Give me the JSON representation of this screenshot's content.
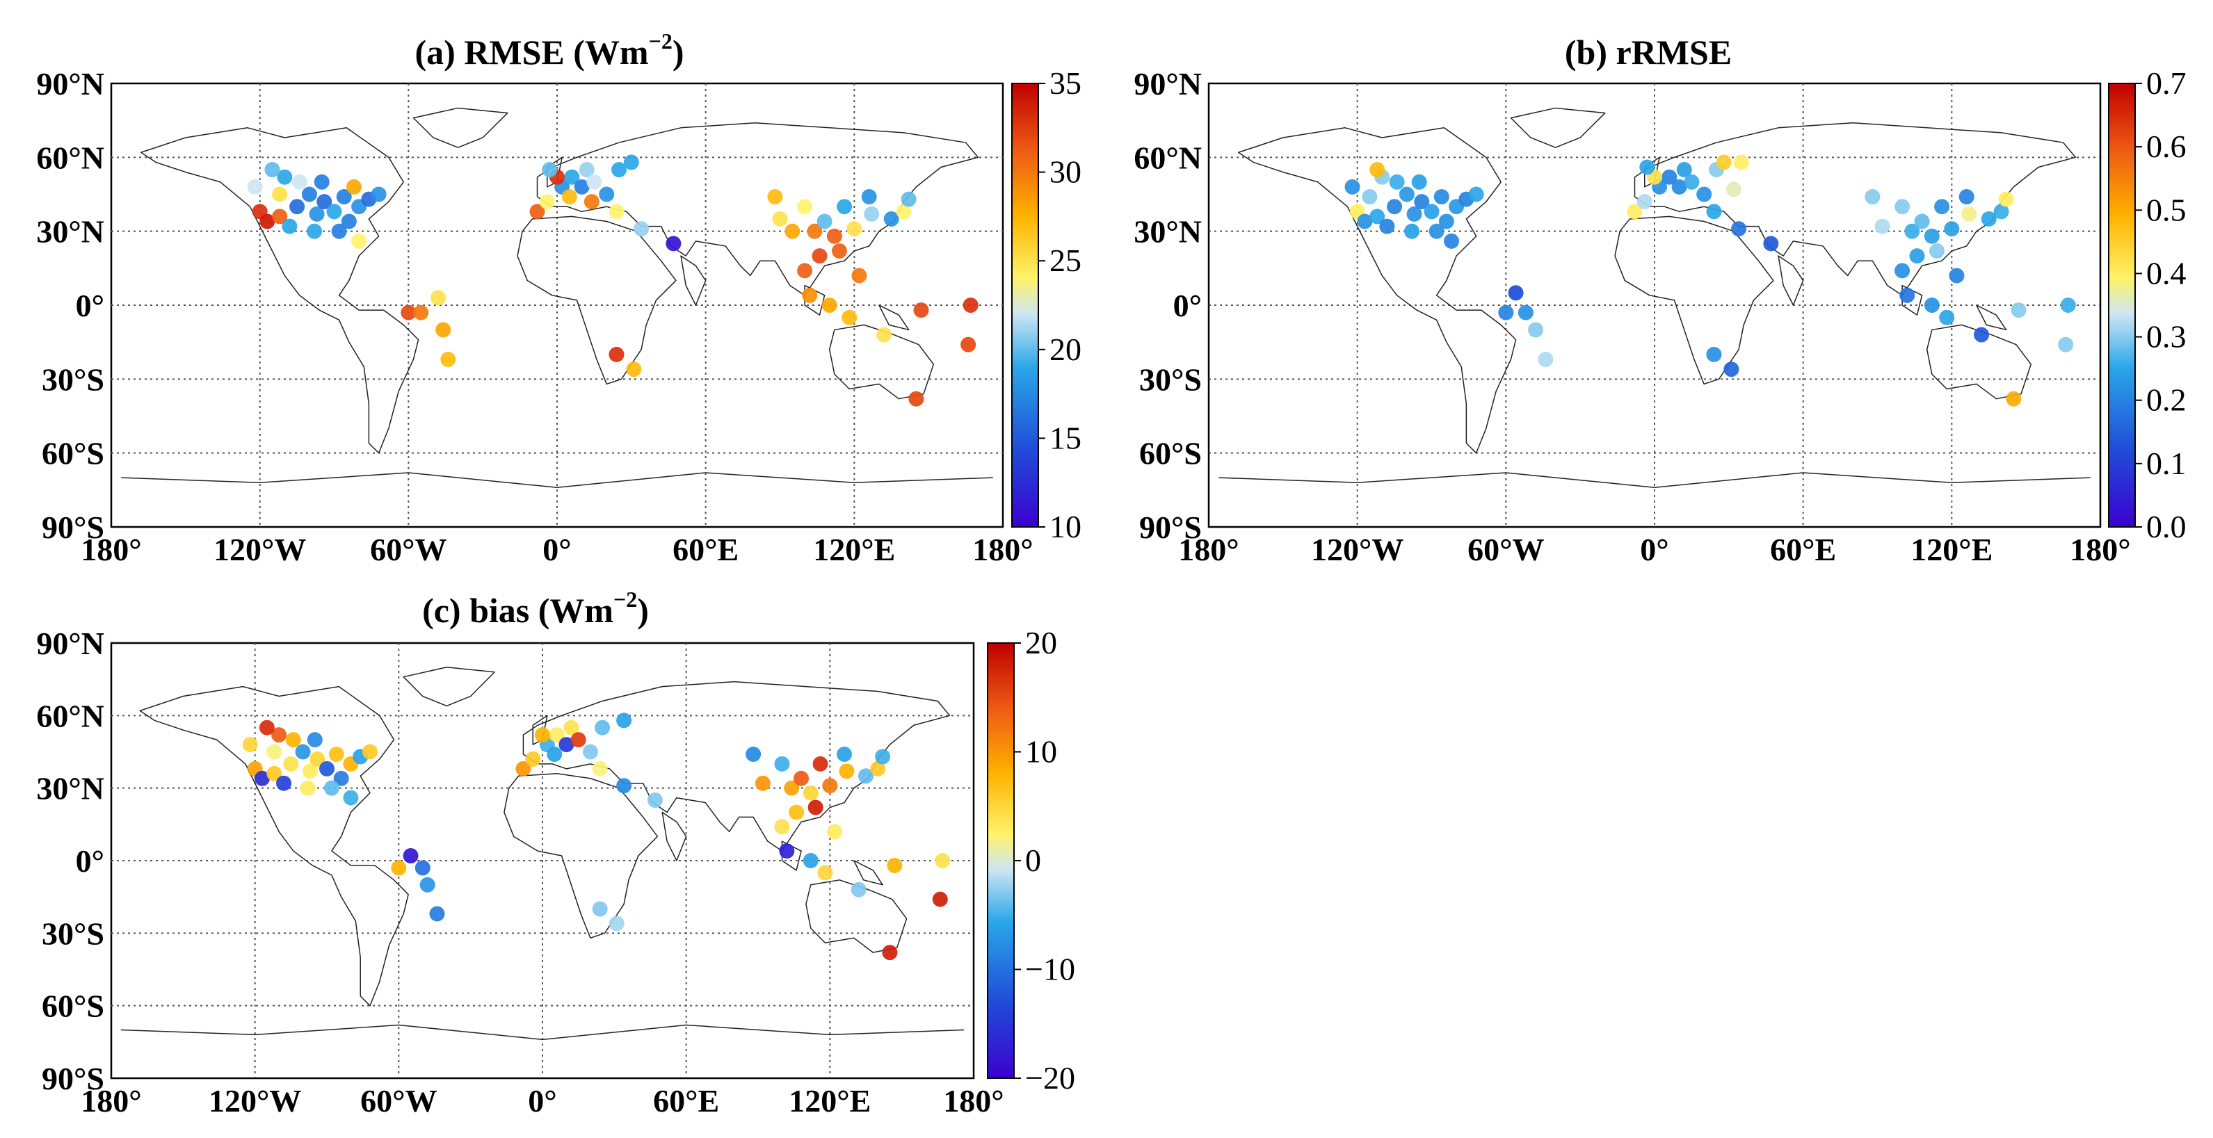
{
  "chart_data": [
    {
      "type": "scatter",
      "title": "(a) RMSE  (Wm^-2)",
      "title_main": "(a) RMSE  (Wm",
      "title_sup": "−2",
      "title_close": ")",
      "colorbar": {
        "min": 10,
        "max": 35,
        "ticks": [
          "10",
          "15",
          "20",
          "25",
          "30",
          "35"
        ]
      },
      "points": [
        {
          "lon": -122,
          "lat": 48,
          "v": 22
        },
        {
          "lon": -120,
          "lat": 38,
          "v": 33
        },
        {
          "lon": -117,
          "lat": 34,
          "v": 34
        },
        {
          "lon": -112,
          "lat": 36,
          "v": 31
        },
        {
          "lon": -108,
          "lat": 32,
          "v": 19
        },
        {
          "lon": -105,
          "lat": 40,
          "v": 16
        },
        {
          "lon": -100,
          "lat": 45,
          "v": 17
        },
        {
          "lon": -97,
          "lat": 37,
          "v": 18
        },
        {
          "lon": -94,
          "lat": 42,
          "v": 16
        },
        {
          "lon": -90,
          "lat": 38,
          "v": 19
        },
        {
          "lon": -86,
          "lat": 44,
          "v": 17
        },
        {
          "lon": -84,
          "lat": 34,
          "v": 17
        },
        {
          "lon": -80,
          "lat": 40,
          "v": 18
        },
        {
          "lon": -76,
          "lat": 43,
          "v": 16
        },
        {
          "lon": -72,
          "lat": 45,
          "v": 18
        },
        {
          "lon": -110,
          "lat": 52,
          "v": 19
        },
        {
          "lon": -104,
          "lat": 50,
          "v": 22
        },
        {
          "lon": -95,
          "lat": 50,
          "v": 17
        },
        {
          "lon": -82,
          "lat": 48,
          "v": 28
        },
        {
          "lon": -112,
          "lat": 45,
          "v": 25
        },
        {
          "lon": -115,
          "lat": 55,
          "v": 20
        },
        {
          "lon": -88,
          "lat": 30,
          "v": 17
        },
        {
          "lon": -98,
          "lat": 30,
          "v": 19
        },
        {
          "lon": -80,
          "lat": 26,
          "v": 24
        },
        {
          "lon": -60,
          "lat": -3,
          "v": 32
        },
        {
          "lon": -55,
          "lat": -3,
          "v": 30
        },
        {
          "lon": -48,
          "lat": 3,
          "v": 25
        },
        {
          "lon": -46,
          "lat": -10,
          "v": 28
        },
        {
          "lon": -44,
          "lat": -22,
          "v": 27
        },
        {
          "lon": -8,
          "lat": 38,
          "v": 31
        },
        {
          "lon": -4,
          "lat": 42,
          "v": 24
        },
        {
          "lon": 2,
          "lat": 48,
          "v": 18
        },
        {
          "lon": 6,
          "lat": 52,
          "v": 19
        },
        {
          "lon": 10,
          "lat": 48,
          "v": 17
        },
        {
          "lon": 12,
          "lat": 55,
          "v": 21
        },
        {
          "lon": 15,
          "lat": 50,
          "v": 22
        },
        {
          "lon": 20,
          "lat": 45,
          "v": 18
        },
        {
          "lon": 25,
          "lat": 55,
          "v": 19
        },
        {
          "lon": 0,
          "lat": 52,
          "v": 33
        },
        {
          "lon": 5,
          "lat": 44,
          "v": 27
        },
        {
          "lon": 14,
          "lat": 42,
          "v": 30
        },
        {
          "lon": 24,
          "lat": 38,
          "v": 24
        },
        {
          "lon": 30,
          "lat": 58,
          "v": 19
        },
        {
          "lon": -3,
          "lat": 55,
          "v": 20
        },
        {
          "lon": 34,
          "lat": 31,
          "v": 21
        },
        {
          "lon": 47,
          "lat": 25,
          "v": 11
        },
        {
          "lon": 24,
          "lat": -20,
          "v": 33
        },
        {
          "lon": 31,
          "lat": -26,
          "v": 27
        },
        {
          "lon": 88,
          "lat": 44,
          "v": 27
        },
        {
          "lon": 90,
          "lat": 35,
          "v": 25
        },
        {
          "lon": 95,
          "lat": 30,
          "v": 28
        },
        {
          "lon": 100,
          "lat": 40,
          "v": 24
        },
        {
          "lon": 104,
          "lat": 30,
          "v": 30
        },
        {
          "lon": 108,
          "lat": 34,
          "v": 20
        },
        {
          "lon": 112,
          "lat": 28,
          "v": 31
        },
        {
          "lon": 116,
          "lat": 40,
          "v": 19
        },
        {
          "lon": 120,
          "lat": 31,
          "v": 25
        },
        {
          "lon": 126,
          "lat": 44,
          "v": 18
        },
        {
          "lon": 127,
          "lat": 37,
          "v": 21
        },
        {
          "lon": 135,
          "lat": 35,
          "v": 18
        },
        {
          "lon": 140,
          "lat": 38,
          "v": 24
        },
        {
          "lon": 142,
          "lat": 43,
          "v": 20
        },
        {
          "lon": 114,
          "lat": 22,
          "v": 31
        },
        {
          "lon": 106,
          "lat": 20,
          "v": 32
        },
        {
          "lon": 100,
          "lat": 14,
          "v": 31
        },
        {
          "lon": 102,
          "lat": 4,
          "v": 29
        },
        {
          "lon": 110,
          "lat": 0,
          "v": 28
        },
        {
          "lon": 118,
          "lat": -5,
          "v": 27
        },
        {
          "lon": 122,
          "lat": 12,
          "v": 30
        },
        {
          "lon": 132,
          "lat": -12,
          "v": 25
        },
        {
          "lon": 147,
          "lat": -2,
          "v": 32
        },
        {
          "lon": 167,
          "lat": 0,
          "v": 33
        },
        {
          "lon": 166,
          "lat": -16,
          "v": 32
        },
        {
          "lon": 145,
          "lat": -38,
          "v": 32
        }
      ]
    },
    {
      "type": "scatter",
      "title": "(b) rRMSE",
      "title_main": "(b) rRMSE",
      "title_sup": "",
      "title_close": "",
      "colorbar": {
        "min": 0.0,
        "max": 0.7,
        "ticks": [
          "0.0",
          "0.1",
          "0.2",
          "0.3",
          "0.4",
          "0.5",
          "0.6",
          "0.7"
        ]
      },
      "points": [
        {
          "lon": -122,
          "lat": 48,
          "v": 0.22
        },
        {
          "lon": -120,
          "lat": 38,
          "v": 0.4
        },
        {
          "lon": -117,
          "lat": 34,
          "v": 0.22
        },
        {
          "lon": -112,
          "lat": 36,
          "v": 0.25
        },
        {
          "lon": -108,
          "lat": 32,
          "v": 0.2
        },
        {
          "lon": -105,
          "lat": 40,
          "v": 0.2
        },
        {
          "lon": -100,
          "lat": 45,
          "v": 0.23
        },
        {
          "lon": -97,
          "lat": 37,
          "v": 0.22
        },
        {
          "lon": -94,
          "lat": 42,
          "v": 0.2
        },
        {
          "lon": -90,
          "lat": 38,
          "v": 0.24
        },
        {
          "lon": -86,
          "lat": 44,
          "v": 0.21
        },
        {
          "lon": -84,
          "lat": 34,
          "v": 0.22
        },
        {
          "lon": -80,
          "lat": 40,
          "v": 0.23
        },
        {
          "lon": -76,
          "lat": 43,
          "v": 0.2
        },
        {
          "lon": -72,
          "lat": 45,
          "v": 0.25
        },
        {
          "lon": -110,
          "lat": 52,
          "v": 0.3
        },
        {
          "lon": -104,
          "lat": 50,
          "v": 0.26
        },
        {
          "lon": -95,
          "lat": 50,
          "v": 0.24
        },
        {
          "lon": -112,
          "lat": 55,
          "v": 0.48
        },
        {
          "lon": -115,
          "lat": 44,
          "v": 0.3
        },
        {
          "lon": -98,
          "lat": 30,
          "v": 0.24
        },
        {
          "lon": -88,
          "lat": 30,
          "v": 0.22
        },
        {
          "lon": -82,
          "lat": 26,
          "v": 0.2
        },
        {
          "lon": -56,
          "lat": 5,
          "v": 0.12
        },
        {
          "lon": -60,
          "lat": -3,
          "v": 0.2
        },
        {
          "lon": -52,
          "lat": -3,
          "v": 0.22
        },
        {
          "lon": -48,
          "lat": -10,
          "v": 0.3
        },
        {
          "lon": -44,
          "lat": -22,
          "v": 0.32
        },
        {
          "lon": -8,
          "lat": 38,
          "v": 0.4
        },
        {
          "lon": -4,
          "lat": 42,
          "v": 0.32
        },
        {
          "lon": 2,
          "lat": 48,
          "v": 0.22
        },
        {
          "lon": 6,
          "lat": 52,
          "v": 0.2
        },
        {
          "lon": 10,
          "lat": 48,
          "v": 0.21
        },
        {
          "lon": 12,
          "lat": 55,
          "v": 0.24
        },
        {
          "lon": 0,
          "lat": 52,
          "v": 0.42
        },
        {
          "lon": 15,
          "lat": 50,
          "v": 0.26
        },
        {
          "lon": 20,
          "lat": 45,
          "v": 0.22
        },
        {
          "lon": 24,
          "lat": 38,
          "v": 0.25
        },
        {
          "lon": 25,
          "lat": 55,
          "v": 0.3
        },
        {
          "lon": 28,
          "lat": 58,
          "v": 0.45
        },
        {
          "lon": 35,
          "lat": 58,
          "v": 0.4
        },
        {
          "lon": 32,
          "lat": 47,
          "v": 0.36
        },
        {
          "lon": -3,
          "lat": 56,
          "v": 0.25
        },
        {
          "lon": 34,
          "lat": 31,
          "v": 0.18
        },
        {
          "lon": 47,
          "lat": 25,
          "v": 0.14
        },
        {
          "lon": 24,
          "lat": -20,
          "v": 0.22
        },
        {
          "lon": 31,
          "lat": -26,
          "v": 0.16
        },
        {
          "lon": 88,
          "lat": 44,
          "v": 0.3
        },
        {
          "lon": 92,
          "lat": 32,
          "v": 0.32
        },
        {
          "lon": 100,
          "lat": 40,
          "v": 0.3
        },
        {
          "lon": 104,
          "lat": 30,
          "v": 0.26
        },
        {
          "lon": 108,
          "lat": 34,
          "v": 0.28
        },
        {
          "lon": 112,
          "lat": 28,
          "v": 0.24
        },
        {
          "lon": 116,
          "lat": 40,
          "v": 0.22
        },
        {
          "lon": 120,
          "lat": 31,
          "v": 0.24
        },
        {
          "lon": 126,
          "lat": 44,
          "v": 0.2
        },
        {
          "lon": 127,
          "lat": 37,
          "v": 0.38
        },
        {
          "lon": 135,
          "lat": 35,
          "v": 0.25
        },
        {
          "lon": 140,
          "lat": 38,
          "v": 0.26
        },
        {
          "lon": 142,
          "lat": 43,
          "v": 0.4
        },
        {
          "lon": 114,
          "lat": 22,
          "v": 0.3
        },
        {
          "lon": 106,
          "lat": 20,
          "v": 0.24
        },
        {
          "lon": 100,
          "lat": 14,
          "v": 0.22
        },
        {
          "lon": 102,
          "lat": 4,
          "v": 0.18
        },
        {
          "lon": 112,
          "lat": 0,
          "v": 0.22
        },
        {
          "lon": 118,
          "lat": -5,
          "v": 0.25
        },
        {
          "lon": 122,
          "lat": 12,
          "v": 0.2
        },
        {
          "lon": 132,
          "lat": -12,
          "v": 0.14
        },
        {
          "lon": 147,
          "lat": -2,
          "v": 0.3
        },
        {
          "lon": 167,
          "lat": 0,
          "v": 0.26
        },
        {
          "lon": 166,
          "lat": -16,
          "v": 0.3
        },
        {
          "lon": 145,
          "lat": -38,
          "v": 0.5
        }
      ]
    },
    {
      "type": "scatter",
      "title": "(c) bias (Wm^-2)",
      "title_main": "(c) bias (Wm",
      "title_sup": "−2",
      "title_close": ")",
      "colorbar": {
        "min": -20,
        "max": 20,
        "ticks": [
          "−20",
          "−10",
          "0",
          "10",
          "20"
        ]
      },
      "points": [
        {
          "lon": -122,
          "lat": 48,
          "v": 5
        },
        {
          "lon": -120,
          "lat": 38,
          "v": 9
        },
        {
          "lon": -117,
          "lat": 34,
          "v": -16
        },
        {
          "lon": -112,
          "lat": 36,
          "v": 6
        },
        {
          "lon": -108,
          "lat": 32,
          "v": -14
        },
        {
          "lon": -105,
          "lat": 40,
          "v": 4
        },
        {
          "lon": -100,
          "lat": 45,
          "v": -7
        },
        {
          "lon": -97,
          "lat": 37,
          "v": 3
        },
        {
          "lon": -94,
          "lat": 42,
          "v": 5
        },
        {
          "lon": -90,
          "lat": 38,
          "v": -12
        },
        {
          "lon": -86,
          "lat": 44,
          "v": 7
        },
        {
          "lon": -84,
          "lat": 34,
          "v": -9
        },
        {
          "lon": -80,
          "lat": 40,
          "v": 8
        },
        {
          "lon": -76,
          "lat": 43,
          "v": -6
        },
        {
          "lon": -72,
          "lat": 45,
          "v": 6
        },
        {
          "lon": -110,
          "lat": 52,
          "v": 14
        },
        {
          "lon": -104,
          "lat": 50,
          "v": 8
        },
        {
          "lon": -95,
          "lat": 50,
          "v": -8
        },
        {
          "lon": -115,
          "lat": 55,
          "v": 17
        },
        {
          "lon": -112,
          "lat": 45,
          "v": 2
        },
        {
          "lon": -98,
          "lat": 30,
          "v": 3
        },
        {
          "lon": -88,
          "lat": 30,
          "v": -4
        },
        {
          "lon": -80,
          "lat": 26,
          "v": -5
        },
        {
          "lon": -55,
          "lat": 2,
          "v": -18
        },
        {
          "lon": -60,
          "lat": -3,
          "v": 8
        },
        {
          "lon": -50,
          "lat": -3,
          "v": -10
        },
        {
          "lon": -48,
          "lat": -10,
          "v": -7
        },
        {
          "lon": -44,
          "lat": -22,
          "v": -9
        },
        {
          "lon": -8,
          "lat": 38,
          "v": 10
        },
        {
          "lon": -4,
          "lat": 42,
          "v": 6
        },
        {
          "lon": 2,
          "lat": 48,
          "v": -5
        },
        {
          "lon": 6,
          "lat": 52,
          "v": 3
        },
        {
          "lon": 10,
          "lat": 48,
          "v": -15
        },
        {
          "lon": 12,
          "lat": 55,
          "v": 4
        },
        {
          "lon": 15,
          "lat": 50,
          "v": 16
        },
        {
          "lon": 20,
          "lat": 45,
          "v": -3
        },
        {
          "lon": 24,
          "lat": 38,
          "v": 2
        },
        {
          "lon": 0,
          "lat": 52,
          "v": 8
        },
        {
          "lon": 5,
          "lat": 44,
          "v": -6
        },
        {
          "lon": 25,
          "lat": 55,
          "v": -4
        },
        {
          "lon": 34,
          "lat": 58,
          "v": -6
        },
        {
          "lon": 34,
          "lat": 31,
          "v": -8
        },
        {
          "lon": 47,
          "lat": 25,
          "v": -3
        },
        {
          "lon": 24,
          "lat": -20,
          "v": -3
        },
        {
          "lon": 31,
          "lat": -26,
          "v": -2
        },
        {
          "lon": 88,
          "lat": 44,
          "v": -8
        },
        {
          "lon": 92,
          "lat": 32,
          "v": 10
        },
        {
          "lon": 100,
          "lat": 40,
          "v": -5
        },
        {
          "lon": 104,
          "lat": 30,
          "v": 9
        },
        {
          "lon": 108,
          "lat": 34,
          "v": 14
        },
        {
          "lon": 112,
          "lat": 28,
          "v": 5
        },
        {
          "lon": 116,
          "lat": 40,
          "v": 17
        },
        {
          "lon": 120,
          "lat": 31,
          "v": 12
        },
        {
          "lon": 126,
          "lat": 44,
          "v": -6
        },
        {
          "lon": 127,
          "lat": 37,
          "v": 8
        },
        {
          "lon": 135,
          "lat": 35,
          "v": -4
        },
        {
          "lon": 140,
          "lat": 38,
          "v": 6
        },
        {
          "lon": 142,
          "lat": 43,
          "v": -5
        },
        {
          "lon": 114,
          "lat": 22,
          "v": 18
        },
        {
          "lon": 106,
          "lat": 20,
          "v": 7
        },
        {
          "lon": 100,
          "lat": 14,
          "v": 4
        },
        {
          "lon": 102,
          "lat": 4,
          "v": -17
        },
        {
          "lon": 112,
          "lat": 0,
          "v": -6
        },
        {
          "lon": 118,
          "lat": -5,
          "v": 5
        },
        {
          "lon": 122,
          "lat": 12,
          "v": 3
        },
        {
          "lon": 132,
          "lat": -12,
          "v": -3
        },
        {
          "lon": 147,
          "lat": -2,
          "v": 8
        },
        {
          "lon": 167,
          "lat": 0,
          "v": 4
        },
        {
          "lon": 166,
          "lat": -16,
          "v": 18
        },
        {
          "lon": 145,
          "lat": -38,
          "v": 18
        }
      ]
    }
  ],
  "axes": {
    "lat_ticks": [
      "90°N",
      "60°N",
      "30°N",
      "0°",
      "30°S",
      "60°S",
      "90°S"
    ],
    "lon_ticks": [
      "180°",
      "120°W",
      "60°W",
      "0°",
      "60°E",
      "120°E",
      "180°"
    ]
  },
  "colors": {
    "frame": "#000000",
    "grid": "#555555",
    "coast": "#222222"
  }
}
